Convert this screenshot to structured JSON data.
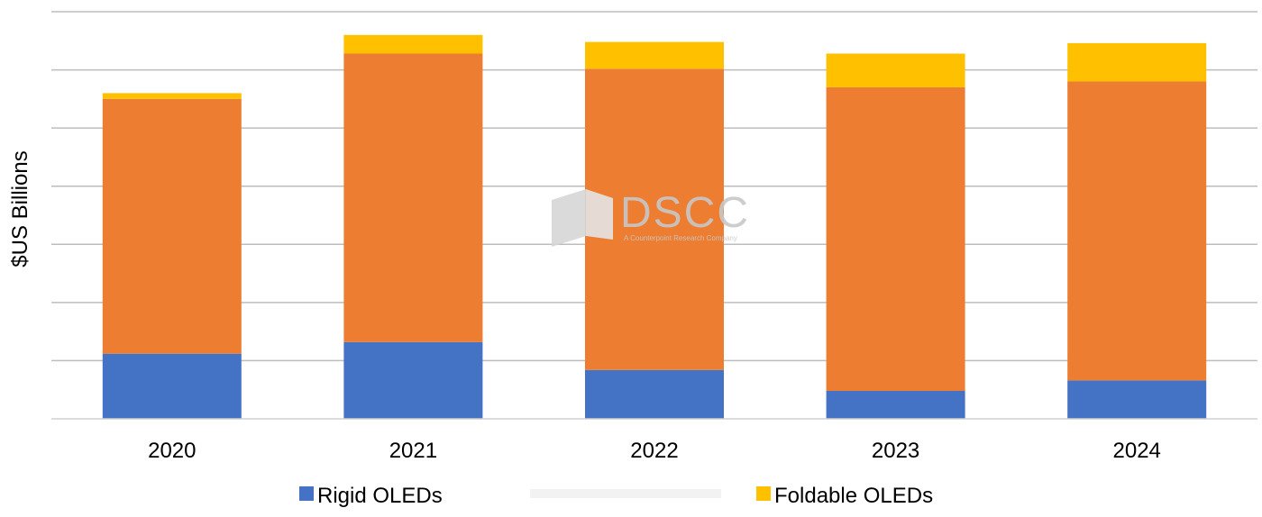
{
  "chart_data": {
    "type": "bar",
    "stacked": true,
    "title": "",
    "xlabel": "",
    "ylabel": "$US Billions",
    "ylim": [
      0,
      35
    ],
    "y_tick_labels_visible": false,
    "grid": true,
    "legend_position": "bottom",
    "categories": [
      "2020",
      "2021",
      "2022",
      "2023",
      "2024"
    ],
    "series": [
      {
        "name": "Rigid OLEDs",
        "color": "#4472C4",
        "values": [
          5.6,
          6.6,
          4.2,
          2.4,
          3.3
        ]
      },
      {
        "name": "",
        "color": "#ED7D31",
        "values": [
          21.9,
          24.8,
          25.9,
          26.1,
          25.7
        ]
      },
      {
        "name": "Foldable OLEDs",
        "color": "#FFC000",
        "values": [
          0.5,
          1.6,
          2.3,
          2.9,
          3.3
        ]
      }
    ]
  },
  "watermark": {
    "name": "DSCC",
    "tagline": "A Counterpoint Research Company"
  }
}
